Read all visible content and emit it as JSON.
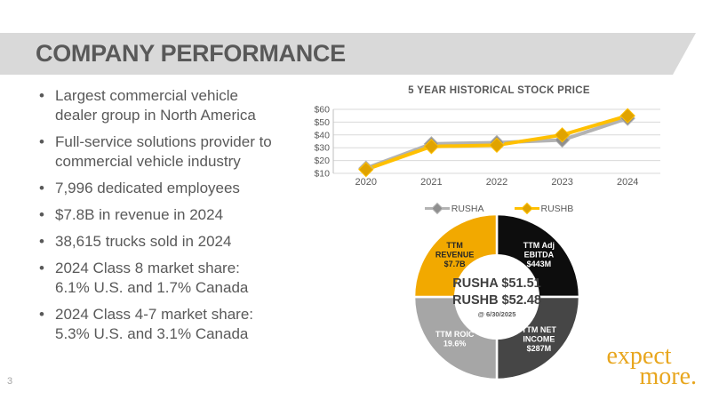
{
  "slide": {
    "title": "COMPANY PERFORMANCE",
    "page_number": "3"
  },
  "bullets": [
    "Largest commercial vehicle\ndealer group in North America",
    "Full-service solutions provider to\ncommercial vehicle industry",
    "7,996 dedicated employees",
    "$7.8B in revenue in 2024",
    "38,615 trucks sold in 2024",
    "2024 Class 8 market share:\n6.1% U.S. and 1.7% Canada",
    "2024 Class 4-7 market share:\n5.3% U.S. and 3.1% Canada"
  ],
  "chart_data": [
    {
      "type": "line",
      "title": "5 YEAR HISTORICAL STOCK PRICE",
      "categories": [
        "2020",
        "2021",
        "2022",
        "2023",
        "2024"
      ],
      "series": [
        {
          "name": "RUSHA",
          "color": "#B3B3B3",
          "marker_color": "#8F8F8F",
          "values": [
            14,
            33,
            34,
            36,
            53
          ]
        },
        {
          "name": "RUSHB",
          "color": "#FFC000",
          "marker_color": "#E0A300",
          "values": [
            13,
            31,
            32,
            40,
            55
          ]
        }
      ],
      "ylim": [
        10,
        60
      ],
      "yticks": [
        10,
        20,
        30,
        40,
        50,
        60
      ],
      "ytick_prefix": "$",
      "grid": true,
      "legend_position": "bottom",
      "marker": "diamond"
    },
    {
      "type": "pie",
      "donut": true,
      "slices": [
        {
          "label": "TTM Adj\nEBITDA\n$443M",
          "value": 25,
          "color": "#0D0D0D",
          "label_color": "#FFFFFF"
        },
        {
          "label": "TTM NET\nINCOME\n$287M",
          "value": 25,
          "color": "#464646",
          "label_color": "#FFFFFF"
        },
        {
          "label": "TTM ROIC\n19.6%",
          "value": 25,
          "color": "#A6A6A6",
          "label_color": "#FFFFFF"
        },
        {
          "label": "TTM\nREVENUE\n$7.7B",
          "value": 25,
          "color": "#F2A900",
          "label_color": "#262626"
        }
      ],
      "center_lines": [
        "RUSHA $51.51",
        "RUSHB $52.48",
        "@ 6/30/2025"
      ]
    }
  ],
  "logo": {
    "line1": "expect",
    "line2": "more.",
    "color": "#E8A61E"
  },
  "colors": {
    "banner": "#D9D9D9",
    "text": "#595959",
    "gridline": "#D9D9D9"
  }
}
